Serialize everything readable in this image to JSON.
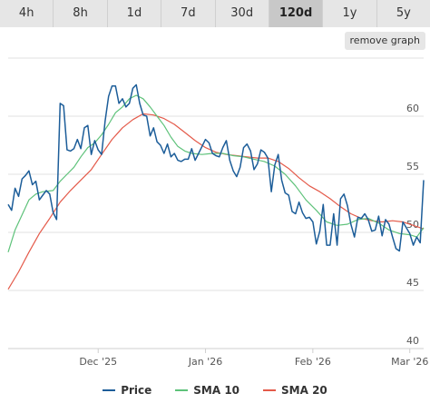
{
  "tabs": [
    {
      "label": "4h",
      "active": false
    },
    {
      "label": "8h",
      "active": false
    },
    {
      "label": "1d",
      "active": false
    },
    {
      "label": "7d",
      "active": false
    },
    {
      "label": "30d",
      "active": false
    },
    {
      "label": "120d",
      "active": true
    },
    {
      "label": "1y",
      "active": false
    },
    {
      "label": "5y",
      "active": false
    }
  ],
  "remove_graph_label": "remove graph",
  "colors": {
    "price": "#1c5d99",
    "sma10": "#5ec27a",
    "sma20": "#e45a4a",
    "grid": "#e0e0e0",
    "axis": "#cfcfcf"
  },
  "chart_data": {
    "type": "line",
    "title": "",
    "xlabel": "",
    "ylabel": "",
    "y_axis_side": "right",
    "ylim": [
      40,
      65
    ],
    "y_ticks": [
      40,
      45,
      50,
      55,
      60
    ],
    "x_start": "2025-11-05",
    "x_end": "2026-03-05",
    "x_ticks": [
      {
        "label": "Dec '25",
        "date": "2025-12-01"
      },
      {
        "label": "Jan '26",
        "date": "2026-01-01"
      },
      {
        "label": "Feb '26",
        "date": "2026-02-01"
      },
      {
        "label": "Mar '26",
        "date": "2026-03-01"
      }
    ],
    "grid": true,
    "legend_position": "bottom",
    "series": [
      {
        "name": "Price",
        "color": "#1c5d99",
        "points": [
          [
            "2025-11-05",
            52.4
          ],
          [
            "2025-11-06",
            51.9
          ],
          [
            "2025-11-07",
            53.8
          ],
          [
            "2025-11-08",
            53.1
          ],
          [
            "2025-11-09",
            54.6
          ],
          [
            "2025-11-10",
            54.9
          ],
          [
            "2025-11-11",
            55.3
          ],
          [
            "2025-11-12",
            54.1
          ],
          [
            "2025-11-13",
            54.4
          ],
          [
            "2025-11-14",
            52.8
          ],
          [
            "2025-11-15",
            53.2
          ],
          [
            "2025-11-16",
            53.6
          ],
          [
            "2025-11-17",
            53.3
          ],
          [
            "2025-11-18",
            51.7
          ],
          [
            "2025-11-19",
            51.1
          ],
          [
            "2025-11-20",
            61.1
          ],
          [
            "2025-11-21",
            60.9
          ],
          [
            "2025-11-22",
            57.1
          ],
          [
            "2025-11-23",
            57.0
          ],
          [
            "2025-11-24",
            57.2
          ],
          [
            "2025-11-25",
            58.0
          ],
          [
            "2025-11-26",
            57.2
          ],
          [
            "2025-11-27",
            59.0
          ],
          [
            "2025-11-28",
            59.2
          ],
          [
            "2025-11-29",
            56.7
          ],
          [
            "2025-11-30",
            57.9
          ],
          [
            "2025-12-01",
            57.1
          ],
          [
            "2025-12-02",
            56.7
          ],
          [
            "2025-12-03",
            59.6
          ],
          [
            "2025-12-04",
            61.7
          ],
          [
            "2025-12-05",
            62.6
          ],
          [
            "2025-12-06",
            62.6
          ],
          [
            "2025-12-07",
            61.1
          ],
          [
            "2025-12-08",
            61.5
          ],
          [
            "2025-12-09",
            60.8
          ],
          [
            "2025-12-10",
            61.1
          ],
          [
            "2025-12-11",
            62.4
          ],
          [
            "2025-12-12",
            62.7
          ],
          [
            "2025-12-13",
            61.1
          ],
          [
            "2025-12-14",
            60.1
          ],
          [
            "2025-12-15",
            60.0
          ],
          [
            "2025-12-16",
            58.3
          ],
          [
            "2025-12-17",
            59.0
          ],
          [
            "2025-12-18",
            57.8
          ],
          [
            "2025-12-19",
            57.5
          ],
          [
            "2025-12-20",
            56.8
          ],
          [
            "2025-12-21",
            57.6
          ],
          [
            "2025-12-22",
            56.5
          ],
          [
            "2025-12-23",
            56.8
          ],
          [
            "2025-12-24",
            56.2
          ],
          [
            "2025-12-25",
            56.1
          ],
          [
            "2025-12-26",
            56.3
          ],
          [
            "2025-12-27",
            56.3
          ],
          [
            "2025-12-28",
            57.2
          ],
          [
            "2025-12-29",
            56.2
          ],
          [
            "2025-12-30",
            56.8
          ],
          [
            "2025-12-31",
            57.4
          ],
          [
            "2026-01-01",
            58.0
          ],
          [
            "2026-01-02",
            57.7
          ],
          [
            "2026-01-03",
            56.8
          ],
          [
            "2026-01-04",
            56.6
          ],
          [
            "2026-01-05",
            56.5
          ],
          [
            "2026-01-06",
            57.3
          ],
          [
            "2026-01-07",
            57.9
          ],
          [
            "2026-01-08",
            56.2
          ],
          [
            "2026-01-09",
            55.3
          ],
          [
            "2026-01-10",
            54.8
          ],
          [
            "2026-01-11",
            55.6
          ],
          [
            "2026-01-12",
            57.3
          ],
          [
            "2026-01-13",
            57.6
          ],
          [
            "2026-01-14",
            57.0
          ],
          [
            "2026-01-15",
            55.4
          ],
          [
            "2026-01-16",
            55.9
          ],
          [
            "2026-01-17",
            57.1
          ],
          [
            "2026-01-18",
            56.9
          ],
          [
            "2026-01-19",
            56.4
          ],
          [
            "2026-01-20",
            53.5
          ],
          [
            "2026-01-21",
            55.8
          ],
          [
            "2026-01-22",
            56.7
          ],
          [
            "2026-01-23",
            54.5
          ],
          [
            "2026-01-24",
            53.4
          ],
          [
            "2026-01-25",
            53.2
          ],
          [
            "2026-01-26",
            51.8
          ],
          [
            "2026-01-27",
            51.6
          ],
          [
            "2026-01-28",
            52.6
          ],
          [
            "2026-01-29",
            51.7
          ],
          [
            "2026-01-30",
            51.2
          ],
          [
            "2026-01-31",
            51.3
          ],
          [
            "2026-02-01",
            50.9
          ],
          [
            "2026-02-02",
            49.0
          ],
          [
            "2026-02-03",
            50.1
          ],
          [
            "2026-02-04",
            52.4
          ],
          [
            "2026-02-05",
            48.9
          ],
          [
            "2026-02-06",
            48.9
          ],
          [
            "2026-02-07",
            51.6
          ],
          [
            "2026-02-08",
            48.9
          ],
          [
            "2026-02-09",
            52.9
          ],
          [
            "2026-02-10",
            53.3
          ],
          [
            "2026-02-11",
            52.3
          ],
          [
            "2026-02-12",
            50.7
          ],
          [
            "2026-02-13",
            49.6
          ],
          [
            "2026-02-14",
            51.3
          ],
          [
            "2026-02-15",
            51.2
          ],
          [
            "2026-02-16",
            51.6
          ],
          [
            "2026-02-17",
            51.1
          ],
          [
            "2026-02-18",
            50.1
          ],
          [
            "2026-02-19",
            50.2
          ],
          [
            "2026-02-20",
            51.4
          ],
          [
            "2026-02-21",
            49.7
          ],
          [
            "2026-02-22",
            51.1
          ],
          [
            "2026-02-23",
            50.7
          ],
          [
            "2026-02-24",
            49.6
          ],
          [
            "2026-02-25",
            48.6
          ],
          [
            "2026-02-26",
            48.4
          ],
          [
            "2026-02-27",
            50.9
          ],
          [
            "2026-02-28",
            50.4
          ],
          [
            "2026-03-01",
            49.9
          ],
          [
            "2026-03-02",
            48.9
          ],
          [
            "2026-03-03",
            49.6
          ],
          [
            "2026-03-04",
            49.1
          ],
          [
            "2026-03-05",
            54.5
          ]
        ]
      },
      {
        "name": "SMA 10",
        "color": "#5ec27a",
        "points": [
          [
            "2025-11-05",
            48.3
          ],
          [
            "2025-11-07",
            50.2
          ],
          [
            "2025-11-09",
            51.5
          ],
          [
            "2025-11-11",
            52.8
          ],
          [
            "2025-11-13",
            53.3
          ],
          [
            "2025-11-15",
            53.5
          ],
          [
            "2025-11-18",
            53.6
          ],
          [
            "2025-11-20",
            54.4
          ],
          [
            "2025-11-22",
            55.0
          ],
          [
            "2025-11-24",
            55.6
          ],
          [
            "2025-11-26",
            56.5
          ],
          [
            "2025-11-28",
            57.3
          ],
          [
            "2025-11-30",
            57.7
          ],
          [
            "2025-12-02",
            58.4
          ],
          [
            "2025-12-04",
            59.3
          ],
          [
            "2025-12-06",
            60.3
          ],
          [
            "2025-12-08",
            60.8
          ],
          [
            "2025-12-10",
            61.5
          ],
          [
            "2025-12-12",
            61.8
          ],
          [
            "2025-12-14",
            61.5
          ],
          [
            "2025-12-16",
            60.8
          ],
          [
            "2025-12-18",
            60.0
          ],
          [
            "2025-12-20",
            59.2
          ],
          [
            "2025-12-22",
            58.2
          ],
          [
            "2025-12-24",
            57.4
          ],
          [
            "2025-12-26",
            57.0
          ],
          [
            "2025-12-28",
            56.8
          ],
          [
            "2025-12-31",
            56.7
          ],
          [
            "2026-01-03",
            56.8
          ],
          [
            "2026-01-06",
            56.8
          ],
          [
            "2026-01-09",
            56.6
          ],
          [
            "2026-01-12",
            56.5
          ],
          [
            "2026-01-15",
            56.3
          ],
          [
            "2026-01-18",
            56.1
          ],
          [
            "2026-01-21",
            55.7
          ],
          [
            "2026-01-24",
            55.0
          ],
          [
            "2026-01-27",
            54.0
          ],
          [
            "2026-01-30",
            52.8
          ],
          [
            "2026-02-02",
            51.9
          ],
          [
            "2026-02-05",
            50.9
          ],
          [
            "2026-02-08",
            50.6
          ],
          [
            "2026-02-11",
            50.7
          ],
          [
            "2026-02-14",
            51.1
          ],
          [
            "2026-02-17",
            51.2
          ],
          [
            "2026-02-20",
            50.8
          ],
          [
            "2026-02-23",
            50.2
          ],
          [
            "2026-02-26",
            49.9
          ],
          [
            "2026-03-01",
            49.8
          ],
          [
            "2026-03-03",
            49.6
          ],
          [
            "2026-03-05",
            50.4
          ]
        ]
      },
      {
        "name": "SMA 20",
        "color": "#e45a4a",
        "points": [
          [
            "2025-11-05",
            45.1
          ],
          [
            "2025-11-08",
            46.6
          ],
          [
            "2025-11-11",
            48.3
          ],
          [
            "2025-11-14",
            49.9
          ],
          [
            "2025-11-17",
            51.2
          ],
          [
            "2025-11-20",
            52.6
          ],
          [
            "2025-11-23",
            53.6
          ],
          [
            "2025-11-26",
            54.5
          ],
          [
            "2025-11-29",
            55.4
          ],
          [
            "2025-12-02",
            56.7
          ],
          [
            "2025-12-05",
            58.0
          ],
          [
            "2025-12-08",
            59.0
          ],
          [
            "2025-12-11",
            59.7
          ],
          [
            "2025-12-14",
            60.2
          ],
          [
            "2025-12-17",
            60.1
          ],
          [
            "2025-12-20",
            59.8
          ],
          [
            "2025-12-23",
            59.3
          ],
          [
            "2025-12-26",
            58.6
          ],
          [
            "2025-12-29",
            57.9
          ],
          [
            "2026-01-01",
            57.3
          ],
          [
            "2026-01-04",
            56.9
          ],
          [
            "2026-01-07",
            56.7
          ],
          [
            "2026-01-10",
            56.6
          ],
          [
            "2026-01-13",
            56.5
          ],
          [
            "2026-01-16",
            56.4
          ],
          [
            "2026-01-19",
            56.4
          ],
          [
            "2026-01-22",
            56.1
          ],
          [
            "2026-01-25",
            55.5
          ],
          [
            "2026-01-28",
            54.7
          ],
          [
            "2026-01-31",
            54.0
          ],
          [
            "2026-02-03",
            53.5
          ],
          [
            "2026-02-06",
            52.9
          ],
          [
            "2026-02-09",
            52.2
          ],
          [
            "2026-02-12",
            51.6
          ],
          [
            "2026-02-15",
            51.2
          ],
          [
            "2026-02-18",
            51.0
          ],
          [
            "2026-02-21",
            50.9
          ],
          [
            "2026-02-24",
            51.0
          ],
          [
            "2026-02-27",
            50.9
          ],
          [
            "2026-03-02",
            50.6
          ],
          [
            "2026-03-05",
            50.3
          ]
        ]
      }
    ]
  }
}
